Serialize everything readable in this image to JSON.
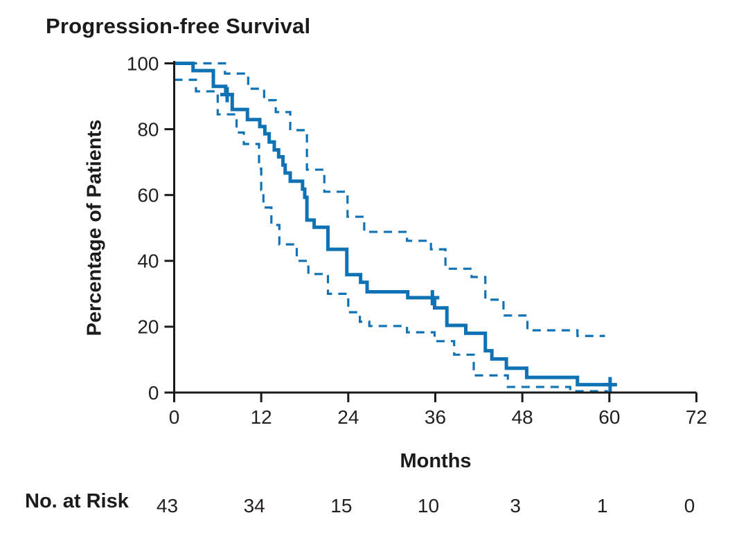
{
  "chart_data": {
    "type": "line",
    "subtype": "kaplan-meier-step",
    "title": "Progression-free Survival",
    "xlabel": "Months",
    "ylabel": "Percentage of Patients",
    "xlim": [
      0,
      72
    ],
    "ylim": [
      0,
      100
    ],
    "xticks": [
      0,
      12,
      24,
      36,
      48,
      60,
      72
    ],
    "yticks": [
      0,
      20,
      40,
      60,
      80,
      100
    ],
    "grid": false,
    "legend_position": "none",
    "colors": {
      "line": "#0e72b5",
      "axis": "#1a1a1a",
      "text": "#231f20",
      "background": "#ffffff"
    },
    "series": [
      {
        "name": "Progression-free survival (Kaplan-Meier estimate)",
        "style": "solid",
        "end_x": 60.4,
        "steps": [
          [
            0,
            100
          ],
          [
            2.6,
            97.8
          ],
          [
            5.4,
            93.0
          ],
          [
            7.1,
            90.5
          ],
          [
            8.0,
            86.0
          ],
          [
            10.1,
            82.9
          ],
          [
            11.8,
            80.8
          ],
          [
            12.5,
            78.6
          ],
          [
            13.1,
            76.1
          ],
          [
            13.8,
            73.7
          ],
          [
            14.4,
            71.6
          ],
          [
            15.0,
            69.1
          ],
          [
            15.3,
            66.7
          ],
          [
            16.0,
            64.2
          ],
          [
            17.7,
            61.8
          ],
          [
            18.0,
            59.3
          ],
          [
            18.3,
            52.4
          ],
          [
            19.3,
            50.2
          ],
          [
            21.2,
            43.5
          ],
          [
            23.8,
            35.8
          ],
          [
            25.7,
            33.5
          ],
          [
            26.6,
            30.6
          ],
          [
            32.2,
            28.8
          ],
          [
            35.9,
            25.7
          ],
          [
            37.6,
            20.4
          ],
          [
            40.2,
            18.0
          ],
          [
            42.9,
            12.7
          ],
          [
            43.8,
            10.2
          ],
          [
            45.8,
            7.4
          ],
          [
            48.6,
            4.6
          ],
          [
            55.6,
            2.4
          ]
        ]
      },
      {
        "name": "95% confidence interval, upper bound",
        "style": "dashed",
        "end_x": 59.4,
        "steps": [
          [
            0,
            100
          ],
          [
            7.0,
            96.9
          ],
          [
            10.2,
            92.3
          ],
          [
            12.4,
            88.8
          ],
          [
            14.0,
            85.2
          ],
          [
            16.0,
            79.7
          ],
          [
            18.3,
            67.7
          ],
          [
            20.7,
            61.0
          ],
          [
            23.9,
            53.4
          ],
          [
            26.2,
            48.8
          ],
          [
            32.1,
            46.1
          ],
          [
            35.4,
            43.5
          ],
          [
            37.4,
            37.6
          ],
          [
            41.0,
            35.1
          ],
          [
            42.9,
            28.2
          ],
          [
            45.4,
            23.4
          ],
          [
            48.7,
            18.9
          ],
          [
            55.6,
            17.2
          ]
        ]
      },
      {
        "name": "95% confidence interval, lower bound",
        "style": "dashed",
        "end_x": 59.8,
        "steps": [
          [
            0,
            95.0
          ],
          [
            3.0,
            91.5
          ],
          [
            6.0,
            84.5
          ],
          [
            8.6,
            79.0
          ],
          [
            9.6,
            75.5
          ],
          [
            11.7,
            68.0
          ],
          [
            12.0,
            61.5
          ],
          [
            12.3,
            56.2
          ],
          [
            13.4,
            50.9
          ],
          [
            14.5,
            45.0
          ],
          [
            16.9,
            40.0
          ],
          [
            18.5,
            36.0
          ],
          [
            21.2,
            30.0
          ],
          [
            24.0,
            24.4
          ],
          [
            25.6,
            21.5
          ],
          [
            26.9,
            20.2
          ],
          [
            32.1,
            18.3
          ],
          [
            35.9,
            15.6
          ],
          [
            38.6,
            11.5
          ],
          [
            41.3,
            5.2
          ],
          [
            46.0,
            1.7
          ],
          [
            54.6,
            0.4
          ]
        ]
      }
    ],
    "censor_marks": [
      {
        "x": 7.3,
        "y": 90.5
      },
      {
        "x": 35.6,
        "y": 28.8
      },
      {
        "x": 60.1,
        "y": 2.4
      }
    ],
    "no_at_risk": {
      "label": "No. at Risk",
      "months": [
        0,
        12,
        24,
        36,
        48,
        60,
        72
      ],
      "counts": [
        43,
        34,
        15,
        10,
        3,
        1,
        0
      ]
    }
  }
}
